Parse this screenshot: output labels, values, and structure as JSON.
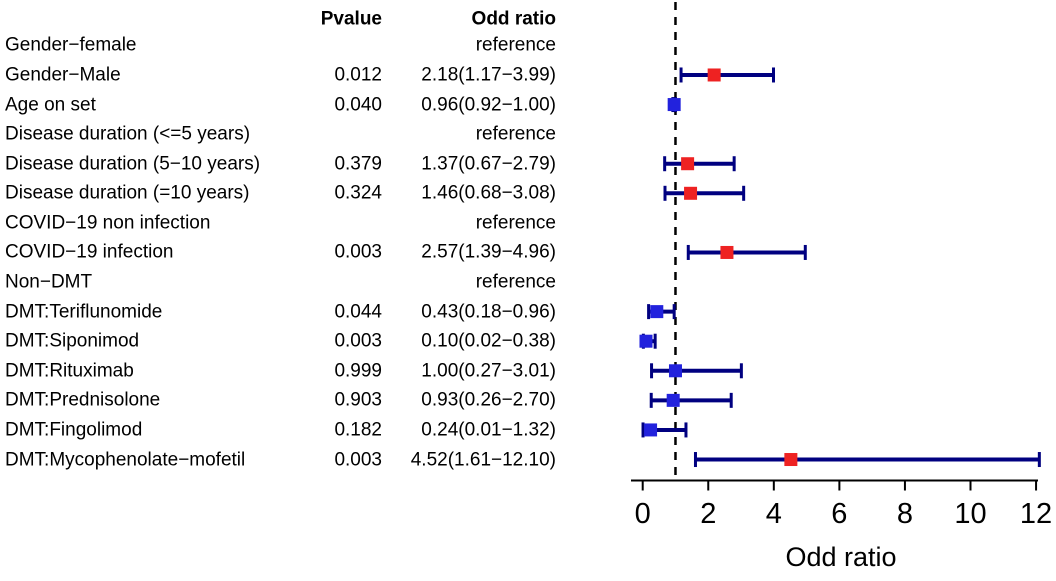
{
  "table": {
    "pvalue_header": "Pvalue",
    "or_header": "Odd ratio"
  },
  "colors": {
    "error_bar": "#000080",
    "marker_red": "#EE2222",
    "marker_blue": "#2222DD",
    "reference_line": "#000000",
    "axis": "#000000",
    "text": "#000000"
  },
  "chart_data": {
    "type": "forest",
    "xlabel": "Odd ratio",
    "xlim": [
      0,
      12
    ],
    "xticks": [
      0,
      2,
      4,
      6,
      8,
      10,
      12
    ],
    "reference_line_x": 1,
    "legend_position": "none",
    "grid": false,
    "rows": [
      {
        "label": "Gender−female",
        "pvalue": "",
        "or_text": "reference",
        "or": null,
        "lo": null,
        "hi": null,
        "color": null
      },
      {
        "label": "Gender−Male",
        "pvalue": "0.012",
        "or_text": "2.18(1.17−3.99)",
        "or": 2.18,
        "lo": 1.17,
        "hi": 3.99,
        "color": "red"
      },
      {
        "label": "Age on set",
        "pvalue": "0.040",
        "or_text": "0.96(0.92−1.00)",
        "or": 0.96,
        "lo": 0.92,
        "hi": 1.0,
        "color": "blue"
      },
      {
        "label": "Disease duration (<=5 years)",
        "pvalue": "",
        "or_text": "reference",
        "or": null,
        "lo": null,
        "hi": null,
        "color": null
      },
      {
        "label": "Disease duration (5−10 years)",
        "pvalue": "0.379",
        "or_text": "1.37(0.67−2.79)",
        "or": 1.37,
        "lo": 0.67,
        "hi": 2.79,
        "color": "red"
      },
      {
        "label": "Disease duration (=10 years)",
        "pvalue": "0.324",
        "or_text": "1.46(0.68−3.08)",
        "or": 1.46,
        "lo": 0.68,
        "hi": 3.08,
        "color": "red"
      },
      {
        "label": "COVID−19 non infection",
        "pvalue": "",
        "or_text": "reference",
        "or": null,
        "lo": null,
        "hi": null,
        "color": null
      },
      {
        "label": "COVID−19 infection",
        "pvalue": "0.003",
        "or_text": "2.57(1.39−4.96)",
        "or": 2.57,
        "lo": 1.39,
        "hi": 4.96,
        "color": "red"
      },
      {
        "label": "Non−DMT",
        "pvalue": "",
        "or_text": "reference",
        "or": null,
        "lo": null,
        "hi": null,
        "color": null
      },
      {
        "label": "DMT:Teriflunomide",
        "pvalue": "0.044",
        "or_text": "0.43(0.18−0.96)",
        "or": 0.43,
        "lo": 0.18,
        "hi": 0.96,
        "color": "blue"
      },
      {
        "label": "DMT:Siponimod",
        "pvalue": "0.003",
        "or_text": "0.10(0.02−0.38)",
        "or": 0.1,
        "lo": 0.02,
        "hi": 0.38,
        "color": "blue"
      },
      {
        "label": "DMT:Rituximab",
        "pvalue": "0.999",
        "or_text": "1.00(0.27−3.01)",
        "or": 1.0,
        "lo": 0.27,
        "hi": 3.01,
        "color": "blue"
      },
      {
        "label": "DMT:Prednisolone",
        "pvalue": "0.903",
        "or_text": "0.93(0.26−2.70)",
        "or": 0.93,
        "lo": 0.26,
        "hi": 2.7,
        "color": "blue"
      },
      {
        "label": "DMT:Fingolimod",
        "pvalue": "0.182",
        "or_text": "0.24(0.01−1.32)",
        "or": 0.24,
        "lo": 0.01,
        "hi": 1.32,
        "color": "blue"
      },
      {
        "label": "DMT:Mycophenolate−mofetil",
        "pvalue": "0.003",
        "or_text": "4.52(1.61−12.10)",
        "or": 4.52,
        "lo": 1.61,
        "hi": 12.1,
        "color": "red"
      }
    ]
  }
}
